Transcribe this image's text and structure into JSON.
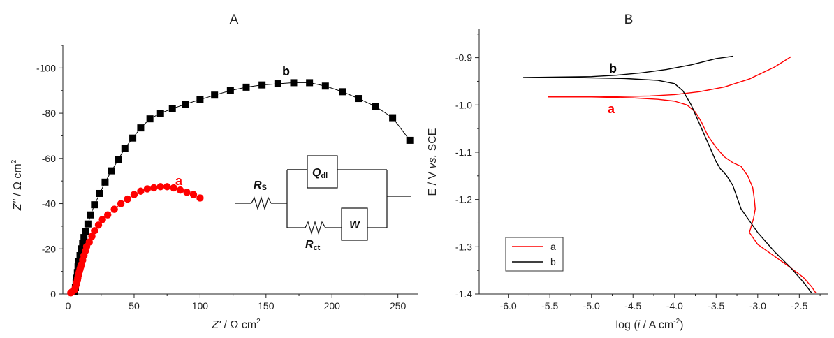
{
  "chart_data": [
    {
      "id": "A",
      "type": "scatter",
      "title": "A",
      "xlabel_main": "Z'",
      "xlabel_unit": " / Ω cm",
      "xlabel_sup": "2",
      "ylabel_main": "Z''",
      "ylabel_unit": " / Ω cm",
      "ylabel_sup": "2",
      "xlim": [
        -4,
        265
      ],
      "ylim": [
        0,
        -110
      ],
      "xticks": [
        0,
        50,
        100,
        150,
        200,
        250
      ],
      "xtick_labels": [
        "0",
        "50",
        "100",
        "150",
        "200",
        "250"
      ],
      "yticks": [
        0,
        -20,
        -40,
        -60,
        -80,
        -100
      ],
      "ytick_labels": [
        "0",
        "-20",
        "-40",
        "-60",
        "-80",
        "-100"
      ],
      "series": [
        {
          "name": "b",
          "color": "#000000",
          "marker": "square",
          "x": [
            5,
            5.5,
            6,
            6.5,
            7,
            7.5,
            8,
            9,
            10,
            11,
            12,
            13,
            15,
            17,
            20,
            24,
            28,
            33,
            38,
            43,
            49,
            55,
            62,
            70,
            79,
            89,
            100,
            111,
            123,
            135,
            147,
            159,
            171,
            183,
            195,
            208,
            220,
            233,
            246,
            259
          ],
          "y": [
            -1,
            -3,
            -5,
            -7,
            -9.5,
            -12,
            -14.5,
            -17,
            -20,
            -22.5,
            -25,
            -27.5,
            -31,
            -35,
            -39.5,
            -44.5,
            -49.5,
            -54.5,
            -59.5,
            -64.5,
            -69,
            -73.5,
            -77.5,
            -80,
            -82,
            -84,
            -86,
            -88,
            -90,
            -91.5,
            -92.5,
            -93,
            -93.5,
            -93.5,
            -92,
            -89.5,
            -86.5,
            -83,
            -78,
            -68
          ]
        },
        {
          "name": "a",
          "color": "#ff0000",
          "marker": "circle",
          "x": [
            2,
            3,
            4,
            5,
            5.5,
            6,
            6.5,
            7,
            7.3,
            7.6,
            8,
            8.5,
            9,
            9.5,
            10,
            11,
            12,
            13,
            14,
            16,
            18,
            20,
            23,
            26,
            30,
            35,
            40,
            45,
            50,
            55,
            60,
            65,
            70,
            75,
            80,
            85,
            90,
            95,
            100
          ],
          "y": [
            -0.5,
            -1,
            -1.5,
            -2,
            -3,
            -4,
            -5,
            -6,
            -7,
            -8,
            -9,
            -10,
            -11,
            -12,
            -13,
            -15,
            -17,
            -19,
            -21,
            -23,
            -25.5,
            -28,
            -30.5,
            -33,
            -35,
            -37.5,
            -40,
            -42,
            -44,
            -45.5,
            -46.5,
            -47,
            -47.5,
            -47.5,
            -47,
            -46,
            -45,
            -44,
            -42.5
          ]
        }
      ],
      "annotations": {
        "label_b": "b",
        "label_a": "a",
        "circuit": {
          "rs_main": "R",
          "rs_sub": "S",
          "q_main": "Q",
          "q_sub": "dl",
          "rct_main": "R",
          "rct_sub": "ct",
          "w_label": "W"
        }
      }
    },
    {
      "id": "B",
      "type": "line",
      "title": "B",
      "xlabel_pre": "log (",
      "xlabel_italic": "i",
      "xlabel_post": " / A cm",
      "xlabel_sup": "-2",
      "xlabel_close": ")",
      "ylabel_pre": "E / V ",
      "ylabel_italic": "vs.",
      "ylabel_post": " SCE",
      "xlim": [
        -6.35,
        -2.15
      ],
      "ylim": [
        -1.4,
        -0.84
      ],
      "xticks": [
        -6.0,
        -5.5,
        -5.0,
        -4.5,
        -4.0,
        -3.5,
        -3.0,
        -2.5
      ],
      "xtick_labels": [
        "-6.0",
        "-5.5",
        "-5.0",
        "-4.5",
        "-4.0",
        "-3.5",
        "-3.0",
        "-2.5"
      ],
      "yticks": [
        -0.9,
        -1.0,
        -1.1,
        -1.2,
        -1.3,
        -1.4
      ],
      "ytick_labels": [
        "-0.9",
        "-1.0",
        "-1.1",
        "-1.2",
        "-1.3",
        "-1.4"
      ],
      "legend": {
        "position": "bottom-left"
      },
      "series": [
        {
          "name": "a",
          "color": "#ff0000",
          "branches": [
            {
              "x": [
                -5.52,
                -5.2,
                -4.9,
                -4.6,
                -4.3,
                -4.0,
                -3.7,
                -3.4,
                -3.1,
                -2.8,
                -2.6
              ],
              "y": [
                -0.983,
                -0.983,
                -0.983,
                -0.982,
                -0.981,
                -0.978,
                -0.972,
                -0.962,
                -0.945,
                -0.92,
                -0.898
              ]
            },
            {
              "x": [
                -5.52,
                -5.0,
                -4.5,
                -4.2,
                -4.0,
                -3.85,
                -3.75,
                -3.68,
                -3.6,
                -3.5,
                -3.4,
                -3.3,
                -3.2,
                -3.12,
                -3.06,
                -3.04,
                -3.03,
                -3.05,
                -3.1,
                -3.0,
                -2.8,
                -2.6,
                -2.45,
                -2.35,
                -2.3
              ],
              "y": [
                -0.983,
                -0.983,
                -0.985,
                -0.988,
                -0.992,
                -1.0,
                -1.015,
                -1.035,
                -1.065,
                -1.09,
                -1.11,
                -1.122,
                -1.13,
                -1.15,
                -1.175,
                -1.2,
                -1.22,
                -1.24,
                -1.27,
                -1.295,
                -1.32,
                -1.345,
                -1.365,
                -1.385,
                -1.398
              ]
            }
          ]
        },
        {
          "name": "b",
          "color": "#000000",
          "branches": [
            {
              "x": [
                -5.82,
                -5.4,
                -5.0,
                -4.7,
                -4.4,
                -4.1,
                -3.8,
                -3.5,
                -3.3
              ],
              "y": [
                -0.942,
                -0.941,
                -0.94,
                -0.937,
                -0.932,
                -0.925,
                -0.915,
                -0.902,
                -0.897
              ]
            },
            {
              "x": [
                -5.82,
                -5.2,
                -4.6,
                -4.2,
                -4.0,
                -3.9,
                -3.8,
                -3.7,
                -3.6,
                -3.55,
                -3.5,
                -3.45,
                -3.38,
                -3.3,
                -3.2,
                -3.0,
                -2.8,
                -2.6,
                -2.45,
                -2.35
              ],
              "y": [
                -0.942,
                -0.942,
                -0.944,
                -0.948,
                -0.955,
                -0.97,
                -1.0,
                -1.04,
                -1.08,
                -1.1,
                -1.12,
                -1.135,
                -1.148,
                -1.17,
                -1.22,
                -1.27,
                -1.31,
                -1.345,
                -1.375,
                -1.398
              ]
            }
          ]
        }
      ],
      "annotations": {
        "label_b": "b",
        "label_a": "a"
      }
    }
  ]
}
